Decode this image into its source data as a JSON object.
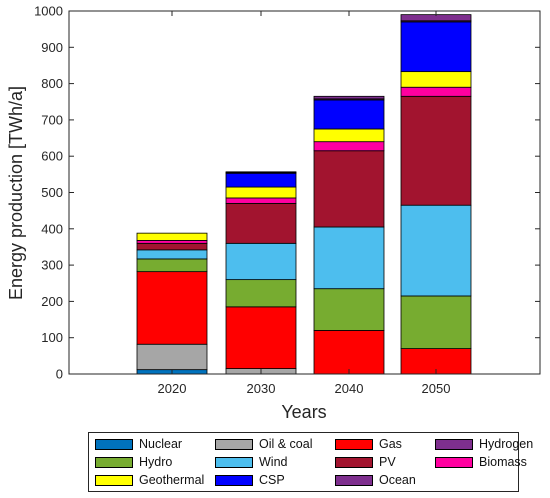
{
  "chart_data": {
    "type": "bar",
    "stacked": true,
    "categories": [
      "2020",
      "2030",
      "2040",
      "2050"
    ],
    "xlabel": "Years",
    "ylabel": "Energy production [TWh/a]",
    "ylim": [
      0,
      1000
    ],
    "yticks": [
      0,
      100,
      200,
      300,
      400,
      500,
      600,
      700,
      800,
      900,
      1000
    ],
    "grid": false,
    "legend_position": "bottom",
    "series": [
      {
        "name": "Nuclear",
        "color": "#0072BD",
        "values": [
          12,
          0,
          0,
          0
        ]
      },
      {
        "name": "Oil & coal",
        "color": "#A6A6A6",
        "values": [
          70,
          15,
          0,
          0
        ]
      },
      {
        "name": "Gas",
        "color": "#FF0000",
        "values": [
          200,
          170,
          120,
          70
        ]
      },
      {
        "name": "Hydro",
        "color": "#77AC30",
        "values": [
          35,
          75,
          115,
          145
        ]
      },
      {
        "name": "Wind",
        "color": "#4DBEEE",
        "values": [
          25,
          100,
          170,
          250
        ]
      },
      {
        "name": "PV",
        "color": "#A2142F",
        "values": [
          18,
          110,
          210,
          300
        ]
      },
      {
        "name": "Biomass",
        "color": "#FF00A0",
        "values": [
          8,
          15,
          25,
          25
        ]
      },
      {
        "name": "Geothermal",
        "color": "#FFFF00",
        "values": [
          20,
          30,
          35,
          43
        ]
      },
      {
        "name": "CSP",
        "color": "#0000FF",
        "values": [
          0,
          38,
          80,
          137
        ]
      },
      {
        "name": "Hydrogen",
        "color": "#7E2F8E",
        "values": [
          0,
          2,
          3,
          3
        ]
      },
      {
        "name": "Ocean",
        "color": "#7E2F8E",
        "values": [
          0,
          2,
          7,
          17
        ]
      }
    ],
    "legend_order": [
      "Nuclear",
      "Oil & coal",
      "Gas",
      "Hydrogen",
      "Hydro",
      "Wind",
      "PV",
      "Biomass",
      "Geothermal",
      "CSP",
      "Ocean"
    ]
  }
}
